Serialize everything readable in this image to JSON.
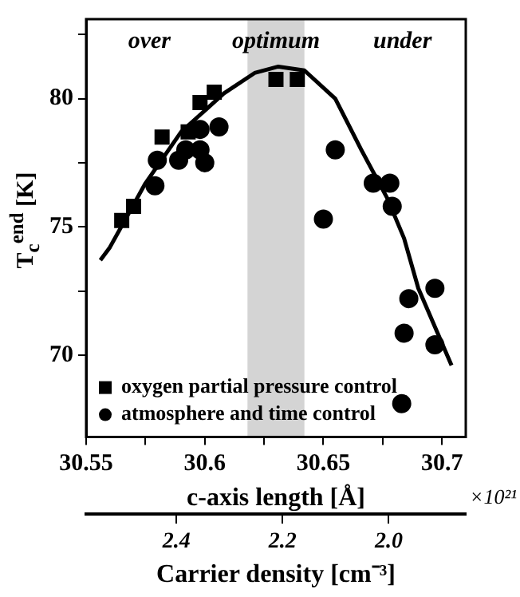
{
  "chart_data": {
    "type": "scatter",
    "xlabel": "c-axis length [Å]",
    "ylabel": "T$_{c}$$^{end}$ [K]",
    "x2label": "Carrier density [cm⁻³]",
    "xlim": [
      30.55,
      30.71
    ],
    "xticks": [
      30.55,
      {
        "value": 30.575,
        "label": null
      },
      30.6,
      {
        "value": 30.625,
        "label": null
      },
      30.65,
      {
        "value": 30.675,
        "label": null
      },
      30.7
    ],
    "ylim": [
      66.8,
      83.1
    ],
    "yticks": [
      70,
      {
        "value": 72.5,
        "label": null
      },
      75,
      {
        "value": 77.5,
        "label": null
      },
      80,
      {
        "value": 82.5,
        "label": null
      }
    ],
    "x2lim": [
      2.57,
      1.855
    ],
    "x2ticks": [
      2.4,
      2.2,
      {
        "value": 2.0,
        "label": "2.0"
      }
    ],
    "grid": false,
    "legend": "bottom left",
    "series": [
      {
        "name": "oxygen partial pressure control",
        "color": "#000000",
        "marker": "square",
        "x": [
          30.565,
          30.57,
          30.582,
          30.593,
          30.598,
          30.604,
          30.63,
          30.639
        ],
        "values": [
          75.25,
          75.8,
          78.5,
          78.7,
          79.85,
          80.25,
          80.75,
          80.75
        ]
      },
      {
        "name": "atmosphere and time control",
        "color": "#000000",
        "marker": "circle",
        "x": [
          30.58,
          30.579,
          30.589,
          30.592,
          30.598,
          30.6,
          30.598,
          30.606,
          30.655,
          30.65,
          30.671,
          30.678,
          30.679,
          30.686,
          30.697,
          30.684,
          30.697,
          30.683
        ],
        "values": [
          77.6,
          76.6,
          77.6,
          78.0,
          78.0,
          77.5,
          78.8,
          78.9,
          78.0,
          75.3,
          76.7,
          76.7,
          75.8,
          72.2,
          72.6,
          70.85,
          70.4,
          68.1
        ]
      },
      {
        "type": "line",
        "color": "#000000",
        "marker": "none",
        "line_style": "solid",
        "x": [
          30.556,
          30.56,
          30.575,
          30.59,
          30.608,
          30.621,
          30.631,
          30.642,
          30.655,
          30.666,
          30.677,
          30.684,
          30.69,
          30.704
        ],
        "values": [
          73.7,
          74.2,
          76.7,
          78.7,
          80.2,
          81.0,
          81.25,
          81.1,
          80.0,
          78.0,
          76.1,
          74.55,
          72.6,
          69.6
        ]
      }
    ],
    "bands": [
      {
        "axis": "x",
        "from": 30.618,
        "to": 30.642,
        "color": "#d4d4d4"
      }
    ],
    "annotations": [
      "over",
      "optimum",
      "under",
      "×10²¹"
    ]
  }
}
